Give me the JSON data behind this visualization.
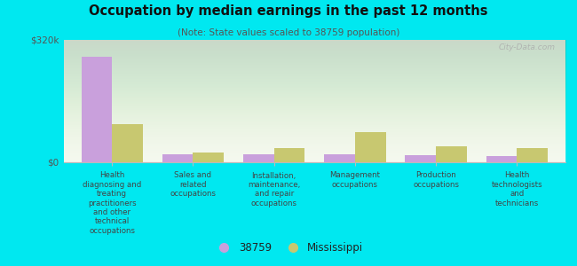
{
  "title": "Occupation by median earnings in the past 12 months",
  "subtitle": "(Note: State values scaled to 38759 population)",
  "background_color": "#00e8f0",
  "categories": [
    "Health\ndiagnosing and\ntreating\npractitioners\nand other\ntechnical\noccupations",
    "Sales and\nrelated\noccupations",
    "Installation,\nmaintenance,\nand repair\noccupations",
    "Management\noccupations",
    "Production\noccupations",
    "Health\ntechnologists\nand\ntechnicians"
  ],
  "values_38759": [
    275000,
    22000,
    20000,
    20000,
    18000,
    16000
  ],
  "values_mississippi": [
    100000,
    26000,
    38000,
    80000,
    42000,
    38000
  ],
  "color_38759": "#c9a0dc",
  "color_mississippi": "#c8c870",
  "ylim": [
    0,
    320000
  ],
  "ytick_labels": [
    "$0",
    "$320k"
  ],
  "legend_label_38759": "38759",
  "legend_label_mississippi": "Mississippi",
  "watermark": "City-Data.com",
  "bar_width": 0.38
}
